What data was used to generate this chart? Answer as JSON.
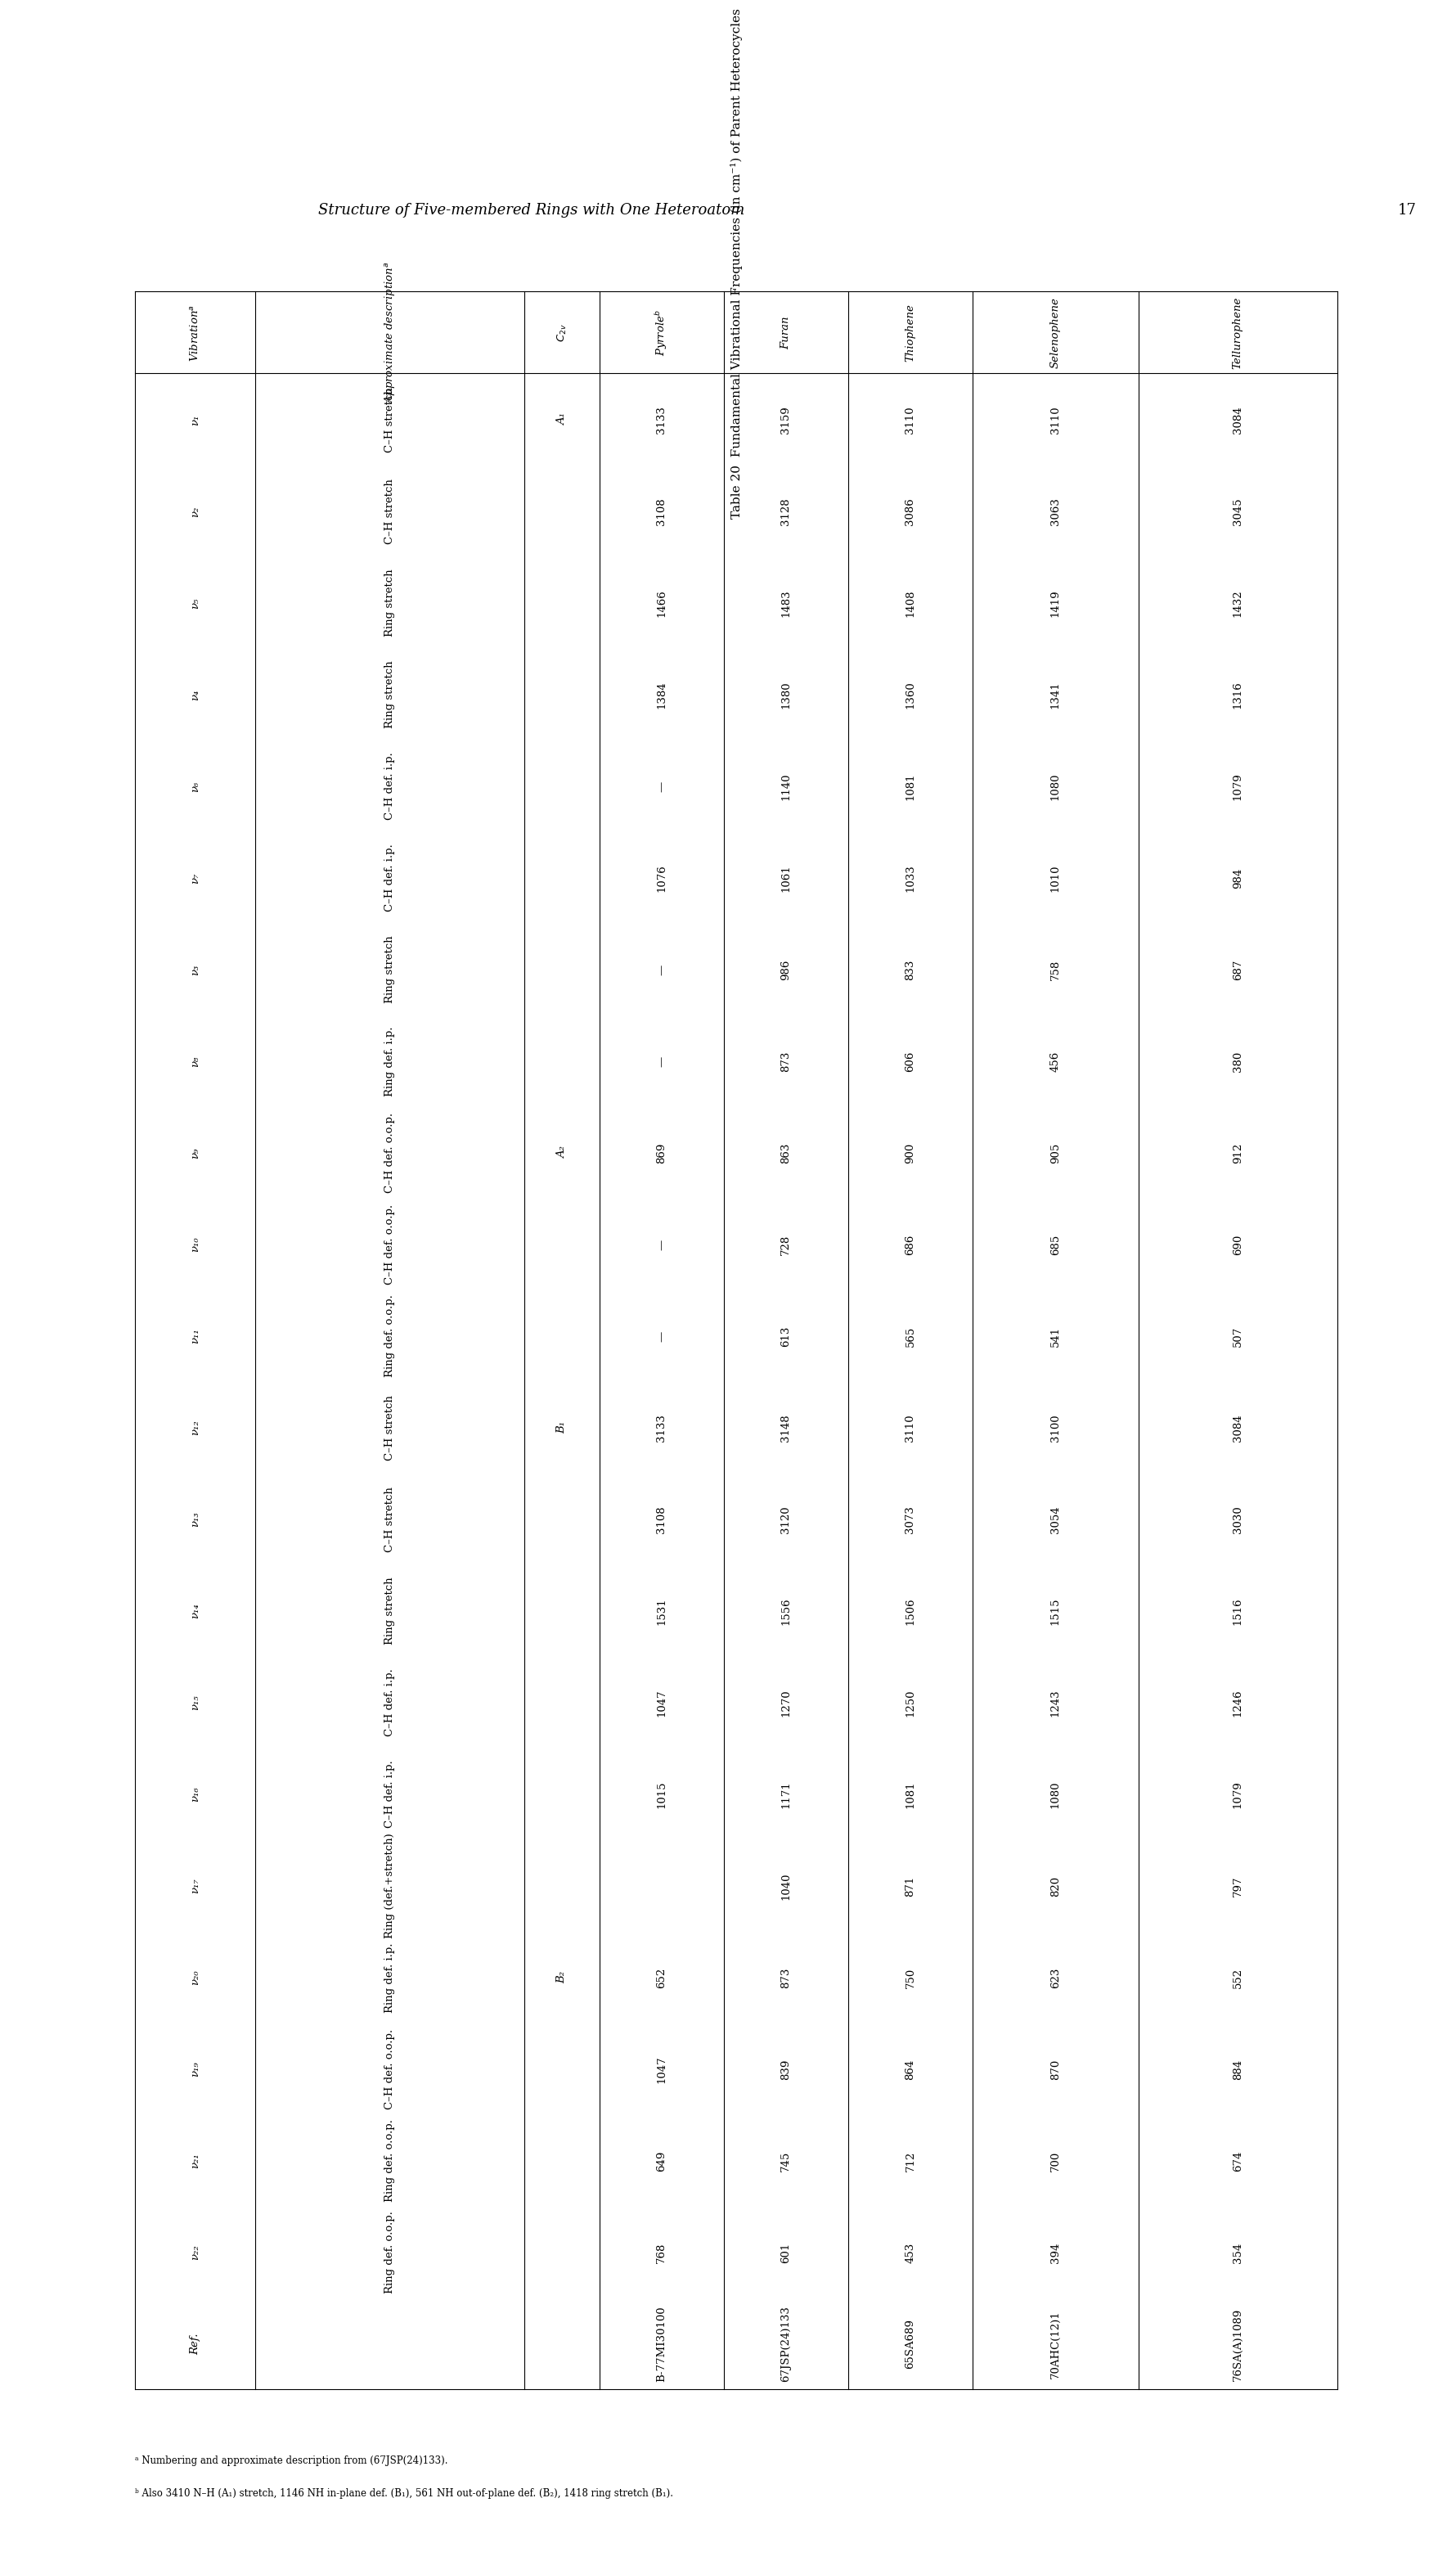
{
  "page_header": "Structure of Five-membered Rings with One Heteroatom",
  "page_number": "17",
  "table_label": "Table 20",
  "table_title": "Fundamental Vibrational Frequencies (in cm⁻¹) of Parent Heterocycles",
  "rows": [
    {
      "vib": "ν₁",
      "desc": "C–H stretch",
      "c2v": "A₁",
      "pyrrole": "3133",
      "furan": "3159",
      "thiophene": "3110",
      "selenophene": "3110",
      "tellurophene": "3084"
    },
    {
      "vib": "ν₂",
      "desc": "C–H stretch",
      "c2v": "",
      "pyrrole": "3108",
      "furan": "3128",
      "thiophene": "3086",
      "selenophene": "3063",
      "tellurophene": "3045"
    },
    {
      "vib": "ν₅",
      "desc": "Ring stretch",
      "c2v": "",
      "pyrrole": "1466",
      "furan": "1483",
      "thiophene": "1408",
      "selenophene": "1419",
      "tellurophene": "1432"
    },
    {
      "vib": "ν₄",
      "desc": "Ring stretch",
      "c2v": "",
      "pyrrole": "1384",
      "furan": "1380",
      "thiophene": "1360",
      "selenophene": "1341",
      "tellurophene": "1316"
    },
    {
      "vib": "ν₆",
      "desc": "C–H def. i.p.",
      "c2v": "",
      "pyrrole": "—",
      "furan": "1140",
      "thiophene": "1081",
      "selenophene": "1080",
      "tellurophene": "1079"
    },
    {
      "vib": "ν₇",
      "desc": "C–H def. i.p.",
      "c2v": "",
      "pyrrole": "1076",
      "furan": "1061",
      "thiophene": "1033",
      "selenophene": "1010",
      "tellurophene": "984"
    },
    {
      "vib": "ν₃",
      "desc": "Ring stretch",
      "c2v": "",
      "pyrrole": "—",
      "furan": "986",
      "thiophene": "833",
      "selenophene": "758",
      "tellurophene": "687"
    },
    {
      "vib": "ν₈",
      "desc": "Ring def. i.p.",
      "c2v": "",
      "pyrrole": "—",
      "furan": "873",
      "thiophene": "606",
      "selenophene": "456",
      "tellurophene": "380"
    },
    {
      "vib": "ν₉",
      "desc": "C–H def. o.o.p.",
      "c2v": "A₂",
      "pyrrole": "869",
      "furan": "863",
      "thiophene": "900",
      "selenophene": "905",
      "tellurophene": "912"
    },
    {
      "vib": "ν₁₀",
      "desc": "C–H def. o.o.p.",
      "c2v": "",
      "pyrrole": "—",
      "furan": "728",
      "thiophene": "686",
      "selenophene": "685",
      "tellurophene": "690"
    },
    {
      "vib": "ν₁₁",
      "desc": "Ring def. o.o.p.",
      "c2v": "",
      "pyrrole": "—",
      "furan": "613",
      "thiophene": "565",
      "selenophene": "541",
      "tellurophene": "507"
    },
    {
      "vib": "ν₁₂",
      "desc": "C–H stretch",
      "c2v": "B₁",
      "pyrrole": "3133",
      "furan": "3148",
      "thiophene": "3110",
      "selenophene": "3100",
      "tellurophene": "3084"
    },
    {
      "vib": "ν₁₃",
      "desc": "C–H stretch",
      "c2v": "",
      "pyrrole": "3108",
      "furan": "3120",
      "thiophene": "3073",
      "selenophene": "3054",
      "tellurophene": "3030"
    },
    {
      "vib": "ν₁₄",
      "desc": "Ring stretch",
      "c2v": "",
      "pyrrole": "1531",
      "furan": "1556",
      "thiophene": "1506",
      "selenophene": "1515",
      "tellurophene": "1516"
    },
    {
      "vib": "ν₁₅",
      "desc": "C–H def. i.p.",
      "c2v": "",
      "pyrrole": "1047",
      "furan": "1270",
      "thiophene": "1250",
      "selenophene": "1243",
      "tellurophene": "1246"
    },
    {
      "vib": "ν₁₆",
      "desc": "C–H def. i.p.",
      "c2v": "",
      "pyrrole": "1015",
      "furan": "1171",
      "thiophene": "1081",
      "selenophene": "1080",
      "tellurophene": "1079"
    },
    {
      "vib": "ν₁₇",
      "desc": "Ring (def.+stretch)",
      "c2v": "",
      "pyrrole": "",
      "furan": "1040",
      "thiophene": "871",
      "selenophene": "820",
      "tellurophene": "797"
    },
    {
      "vib": "ν₂₀",
      "desc": "Ring def. i.p.",
      "c2v": "B₂",
      "pyrrole": "652",
      "furan": "873",
      "thiophene": "750",
      "selenophene": "623",
      "tellurophene": "552"
    },
    {
      "vib": "ν₁₉",
      "desc": "C–H def. o.o.p.",
      "c2v": "",
      "pyrrole": "1047",
      "furan": "839",
      "thiophene": "864",
      "selenophene": "870",
      "tellurophene": "884"
    },
    {
      "vib": "ν₂₁",
      "desc": "Ring def. o.o.p.",
      "c2v": "",
      "pyrrole": "649",
      "furan": "745",
      "thiophene": "712",
      "selenophene": "700",
      "tellurophene": "674"
    },
    {
      "vib": "ν₂₂",
      "desc": "Ring def. o.o.p.",
      "c2v": "",
      "pyrrole": "768",
      "furan": "601",
      "thiophene": "453",
      "selenophene": "394",
      "tellurophene": "354"
    },
    {
      "vib": "Ref.",
      "desc": "",
      "c2v": "",
      "pyrrole": "B-77MI30100",
      "furan": "67JSP(24)133",
      "thiophene": "65SA689",
      "selenophene": "70AHC(12)1",
      "tellurophene": "76SA(A)1089"
    }
  ],
  "footnote_a": "ᵃ Numbering and approximate description from (67JSP(24)133).",
  "footnote_b": "ᵇ Also 3410 N–H (A₁) stretch, 1146 NH in-plane def. (B₁), 561 NH out-of-plane def. (B₂), 1418 ring stretch (B₁)."
}
